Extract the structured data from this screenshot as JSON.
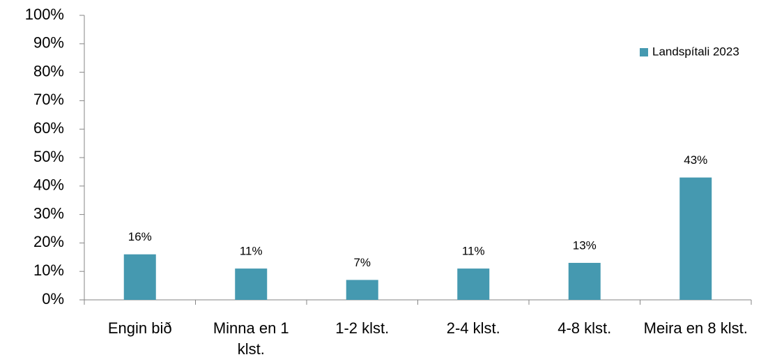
{
  "chart_data": {
    "type": "bar",
    "categories": [
      "Engin bið",
      "Minna en 1 klst.",
      "1-2 klst.",
      "2-4 klst.",
      "4-8 klst.",
      "Meira en 8 klst."
    ],
    "series": [
      {
        "name": "Landspítali 2023",
        "color": "#4599b0",
        "values": [
          16,
          11,
          7,
          11,
          13,
          43
        ],
        "value_labels": [
          "16%",
          "11%",
          "7%",
          "11%",
          "13%",
          "43%"
        ]
      }
    ],
    "ylim": [
      0,
      100
    ],
    "yticks": [
      {
        "value": 0,
        "label": "0%"
      },
      {
        "value": 10,
        "label": "10%"
      },
      {
        "value": 20,
        "label": "20%"
      },
      {
        "value": 30,
        "label": "30%"
      },
      {
        "value": 40,
        "label": "40%"
      },
      {
        "value": 50,
        "label": "50%"
      },
      {
        "value": 60,
        "label": "60%"
      },
      {
        "value": 70,
        "label": "70%"
      },
      {
        "value": 80,
        "label": "80%"
      },
      {
        "value": 90,
        "label": "90%"
      },
      {
        "value": 100,
        "label": "100%"
      }
    ],
    "legend": "top-right"
  }
}
